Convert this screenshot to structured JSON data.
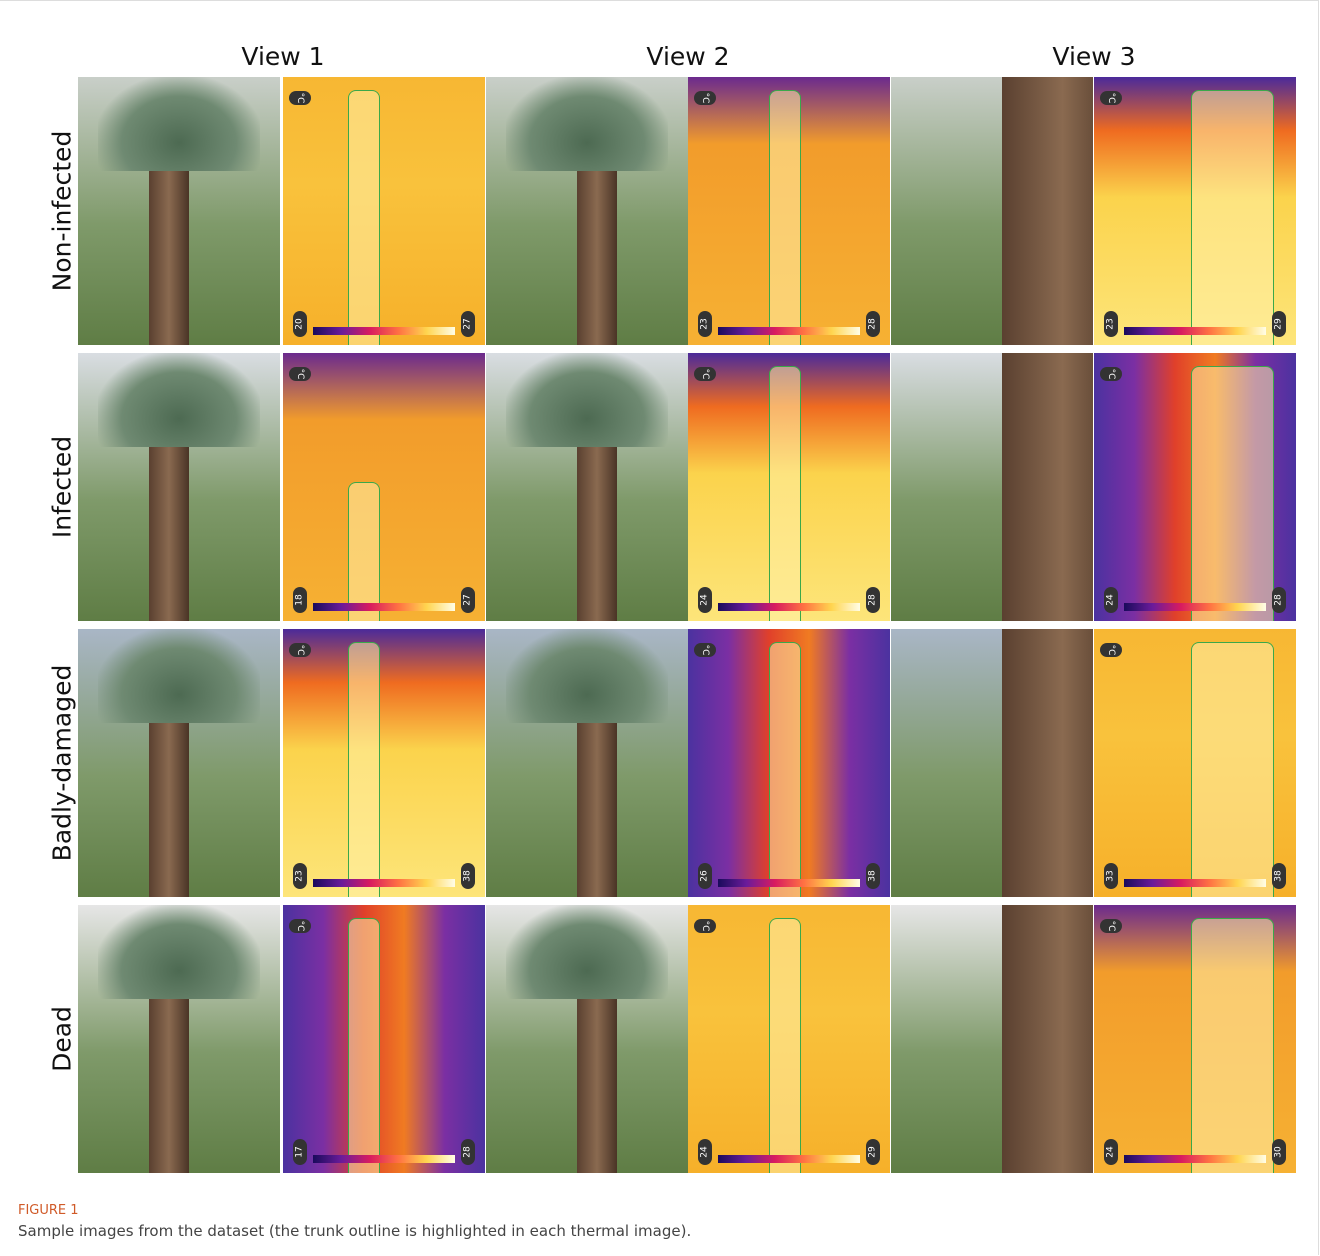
{
  "figure": {
    "column_headers": [
      "View 1",
      "View 2",
      "View 3"
    ],
    "thermal_unit": "°C",
    "rows": [
      {
        "label": "Non-infected",
        "thermal_ranges": [
          [
            20,
            27
          ],
          [
            23,
            28
          ],
          [
            23,
            29
          ]
        ]
      },
      {
        "label": "Infected",
        "thermal_ranges": [
          [
            18,
            27
          ],
          [
            24,
            28
          ],
          [
            24,
            28
          ]
        ]
      },
      {
        "label": "Badly-damaged",
        "thermal_ranges": [
          [
            23,
            38
          ],
          [
            26,
            38
          ],
          [
            33,
            38
          ]
        ]
      },
      {
        "label": "Dead",
        "thermal_ranges": [
          [
            17,
            28
          ],
          [
            24,
            29
          ],
          [
            24,
            30
          ]
        ]
      }
    ],
    "label": "FIGURE 1",
    "caption": "Sample images from the dataset (the trunk outline is highlighted in each thermal image)."
  }
}
